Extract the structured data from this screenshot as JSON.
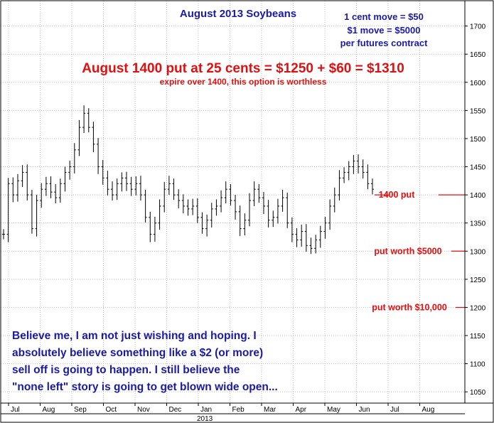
{
  "chart_data": {
    "type": "ohlc",
    "title": "August 2013 Soybeans",
    "info_lines": [
      "1 cent move = $50",
      "$1 move = $5000",
      "per futures contract"
    ],
    "headline": "August 1400 put at 25 cents = $1250 + $60 = $1310",
    "subheadline": "expire over 1400, this option is worthless",
    "reference_lines": [
      {
        "value": 1400,
        "label": "1400 put"
      },
      {
        "value": 1300,
        "label": "put worth $5000"
      },
      {
        "value": 1200,
        "label": "put worth $10,000"
      }
    ],
    "commentary": [
      "Believe me, I am not just wishing and hoping. I",
      "absolutely believe something like a $2 (or more)",
      "sell off is going to happen. I still believe the",
      "\"none left\" story is going to get blown wide open..."
    ],
    "yticks": [
      1050,
      1100,
      1150,
      1200,
      1250,
      1300,
      1350,
      1400,
      1450,
      1500,
      1550,
      1600,
      1650,
      1700
    ],
    "ylim": [
      1030,
      1745
    ],
    "months": [
      "Jul",
      "Aug",
      "Sep",
      "Oct",
      "Nov",
      "Dec",
      "Jan",
      "Feb",
      "Mar",
      "Apr",
      "May",
      "Jun",
      "Jul",
      "Aug"
    ],
    "year_label": "2013",
    "year_label_month_index": 6,
    "grid": true,
    "series": [
      {
        "values": [
          1330,
          1420,
          1400,
          1425,
          1440,
          1400,
          1340,
          1390,
          1410,
          1420,
          1405,
          1395,
          1420,
          1440,
          1450,
          1480,
          1520,
          1545,
          1520,
          1490,
          1450,
          1430,
          1410,
          1400,
          1420,
          1430,
          1420,
          1410,
          1420,
          1400,
          1360,
          1330,
          1350,
          1380,
          1410,
          1420,
          1400,
          1390,
          1380,
          1375,
          1380,
          1360,
          1340,
          1355,
          1375,
          1380,
          1395,
          1410,
          1390,
          1370,
          1340,
          1355,
          1390,
          1410,
          1395,
          1380,
          1355,
          1360,
          1380,
          1395,
          1350,
          1330,
          1320,
          1335,
          1310,
          1305,
          1320,
          1335,
          1350,
          1380,
          1400,
          1430,
          1440,
          1450,
          1460,
          1450,
          1440,
          1420,
          1410
        ]
      }
    ]
  }
}
